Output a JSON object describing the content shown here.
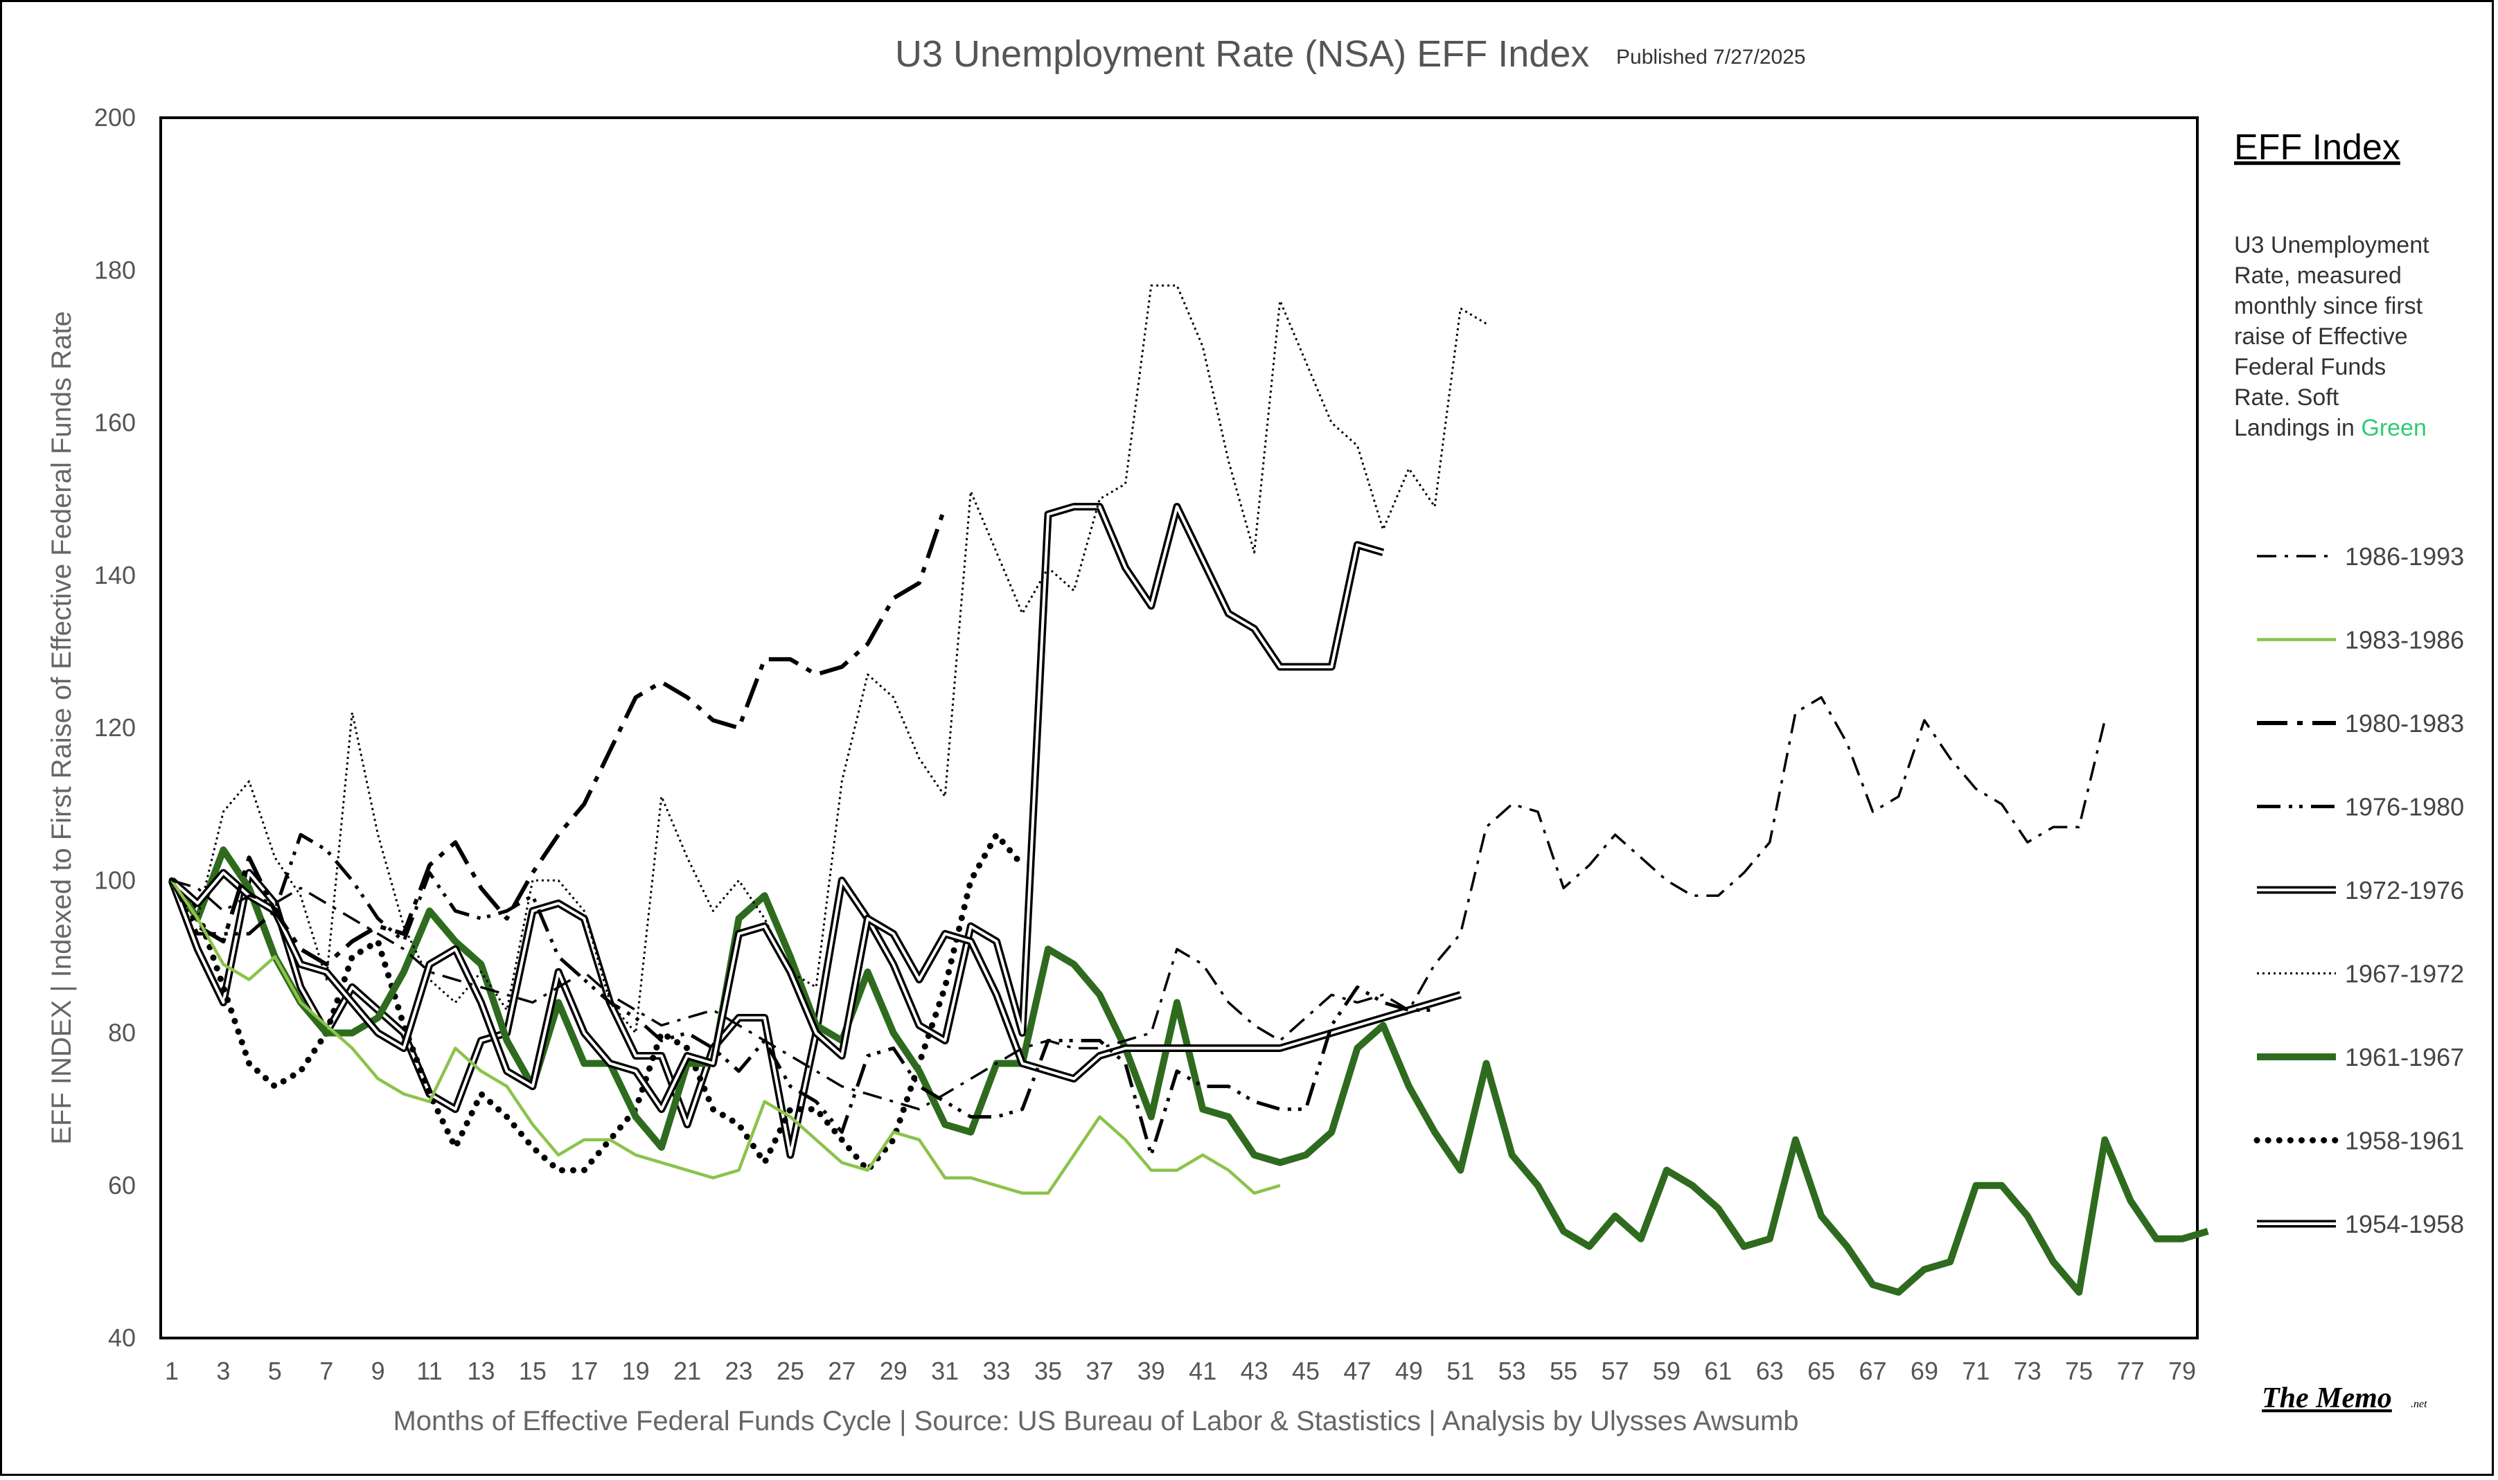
{
  "chart_data": {
    "type": "line",
    "title": "U3 Unemployment Rate (NSA) EFF Index",
    "subtitle": "Published 7/27/2025",
    "xlabel": "Months of Effective Federal Funds Cycle  |  Source: US Bureau of Labor & Stastistics  |  Analysis by Ulysses Awsumb",
    "ylabel": "EFF INDEX | Indexed to First Raise of Effective Federal Funds Rate",
    "xlim": [
      1,
      79
    ],
    "ylim": [
      40,
      200
    ],
    "y_ticks": [
      40,
      60,
      80,
      100,
      120,
      140,
      160,
      180,
      200
    ],
    "x_ticks": [
      1,
      3,
      5,
      7,
      9,
      11,
      13,
      15,
      17,
      19,
      21,
      23,
      25,
      27,
      29,
      31,
      33,
      35,
      37,
      39,
      41,
      43,
      45,
      47,
      49,
      51,
      53,
      55,
      57,
      59,
      61,
      63,
      65,
      67,
      69,
      71,
      73,
      75,
      77,
      79
    ],
    "grid": false,
    "legend": {
      "title": "EFF Index",
      "description": [
        "U3 Unemployment",
        "Rate, measured",
        "monthly since first",
        "raise of Effective",
        "Federal Funds",
        "Rate. Soft"
      ],
      "description_last_prefix": "Landings in ",
      "description_last_highlight": "Green",
      "highlight_color": "#2ecc71",
      "position": "right"
    },
    "series": [
      {
        "name": "1986-1993",
        "style": "dashdot",
        "color": "#000000",
        "values": [
          100,
          99,
          96,
          98,
          97,
          99,
          97,
          95,
          93,
          91,
          88,
          87,
          86,
          85,
          84,
          86,
          88,
          85,
          83,
          81,
          82,
          83,
          81,
          79,
          77,
          75,
          73,
          72,
          71,
          70,
          72,
          74,
          76,
          78,
          79,
          78,
          78,
          79,
          80,
          91,
          89,
          84,
          81,
          79,
          82,
          85,
          84,
          85,
          83,
          89,
          93,
          107,
          110,
          109,
          99,
          102,
          106,
          103,
          100,
          98,
          98,
          101,
          105,
          122,
          124,
          118,
          109,
          111,
          121,
          116,
          112,
          110,
          105,
          107,
          107,
          121
        ]
      },
      {
        "name": "1983-1986",
        "style": "solid",
        "color": "#8bc34a",
        "values": [
          100,
          95,
          89,
          87,
          90,
          84,
          81,
          78,
          74,
          72,
          71,
          78,
          75,
          73,
          68,
          64,
          66,
          66,
          64,
          63,
          62,
          61,
          62,
          71,
          69,
          66,
          63,
          62,
          67,
          66,
          61,
          61,
          60,
          59,
          59,
          64,
          69,
          66,
          62,
          62,
          64,
          62,
          59,
          60
        ]
      },
      {
        "name": "1980-1983",
        "style": "longdashdot",
        "color": "#000000",
        "values": [
          100,
          94,
          92,
          103,
          96,
          91,
          89,
          92,
          94,
          93,
          102,
          105,
          99,
          95,
          101,
          106,
          110,
          117,
          124,
          126,
          124,
          121,
          120,
          129,
          129,
          127,
          128,
          131,
          137,
          139,
          149
        ]
      },
      {
        "name": "1976-1980",
        "style": "dashdotdot",
        "color": "#000000",
        "values": [
          100,
          93,
          93,
          93,
          96,
          106,
          104,
          100,
          95,
          92,
          101,
          96,
          95,
          96,
          98,
          90,
          87,
          84,
          82,
          79,
          80,
          78,
          75,
          79,
          73,
          71,
          67,
          77,
          78,
          73,
          71,
          69,
          69,
          70,
          79,
          79,
          79,
          76,
          64,
          75,
          73,
          73,
          71,
          70,
          70,
          81,
          86,
          84,
          83,
          83
        ]
      },
      {
        "name": "1972-1976",
        "style": "double",
        "color": "#000000",
        "values": [
          100,
          97,
          101,
          98,
          96,
          89,
          88,
          84,
          80,
          78,
          89,
          91,
          84,
          75,
          73,
          88,
          80,
          76,
          75,
          70,
          77,
          76,
          93,
          94,
          88,
          80,
          77,
          95,
          93,
          87,
          93,
          92,
          85,
          76,
          75,
          74,
          77,
          78,
          78,
          78,
          78,
          78,
          78,
          78,
          79,
          80,
          81,
          82,
          83,
          84,
          85
        ]
      },
      {
        "name": "1967-1972",
        "style": "dotted",
        "color": "#000000",
        "values": [
          100,
          95,
          109,
          113,
          103,
          98,
          87,
          122,
          106,
          94,
          87,
          84,
          88,
          83,
          100,
          100,
          96,
          84,
          80,
          111,
          103,
          96,
          100,
          95,
          88,
          86,
          113,
          127,
          124,
          116,
          111,
          151,
          143,
          135,
          141,
          138,
          150,
          152,
          178,
          178,
          170,
          155,
          143,
          176,
          168,
          160,
          157,
          146,
          154,
          149,
          175,
          173
        ]
      },
      {
        "name": "1961-1967",
        "style": "thick",
        "color": "#2e6b1e",
        "values": [
          100,
          95,
          104,
          99,
          90,
          84,
          80,
          80,
          82,
          88,
          96,
          92,
          89,
          79,
          73,
          84,
          76,
          76,
          69,
          65,
          76,
          76,
          95,
          98,
          90,
          81,
          79,
          88,
          80,
          75,
          68,
          67,
          76,
          76,
          91,
          89,
          85,
          78,
          69,
          84,
          70,
          69,
          64,
          63,
          64,
          67,
          78,
          81,
          73,
          67,
          62,
          76,
          64,
          60,
          54,
          52,
          56,
          53,
          62,
          60,
          57,
          52,
          53,
          66,
          56,
          52,
          47,
          46,
          49,
          50,
          60,
          60,
          56,
          50,
          46,
          66,
          58,
          53,
          53,
          54
        ]
      },
      {
        "name": "1958-1961",
        "style": "bigdots",
        "color": "#000000",
        "values": [
          100,
          96,
          86,
          76,
          73,
          75,
          80,
          90,
          92,
          81,
          72,
          65,
          72,
          69,
          65,
          62,
          62,
          66,
          70,
          80,
          78,
          70,
          68,
          63,
          70,
          70,
          66,
          62,
          66,
          76,
          86,
          100,
          106,
          102
        ]
      },
      {
        "name": "1954-1958",
        "style": "double",
        "color": "#000000",
        "values": [
          100,
          91,
          84,
          101,
          97,
          86,
          80,
          86,
          83,
          80,
          72,
          70,
          79,
          80,
          96,
          97,
          95,
          84,
          77,
          77,
          68,
          78,
          82,
          82,
          64,
          80,
          100,
          95,
          89,
          81,
          79,
          94,
          92,
          80,
          148,
          149,
          149,
          141,
          136,
          149,
          142,
          135,
          133,
          128,
          128,
          128,
          144,
          143
        ]
      }
    ]
  },
  "logo": {
    "main": "The Memo",
    "suffix": ".net"
  }
}
